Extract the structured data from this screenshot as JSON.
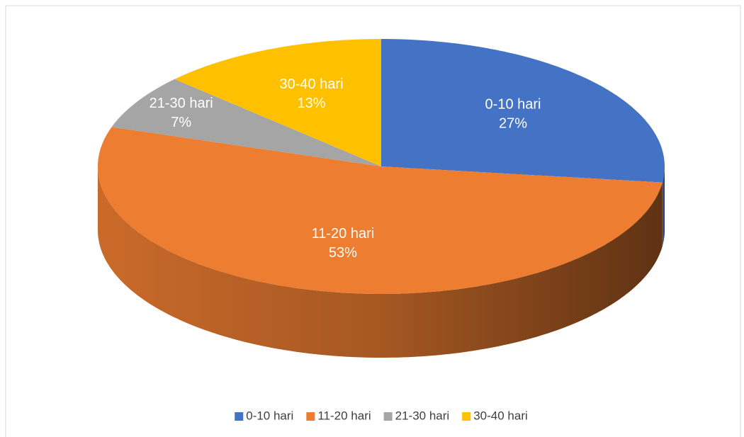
{
  "chart_data": {
    "type": "pie",
    "categories": [
      "0-10 hari",
      "11-20 hari",
      "21-30 hari",
      "30-40 hari"
    ],
    "values": [
      27,
      53,
      7,
      13
    ],
    "value_labels": [
      "27%",
      "53%",
      "7%",
      "13%"
    ],
    "colors": [
      "#4472c4",
      "#ed7d31",
      "#a5a5a5",
      "#ffc000"
    ],
    "legend": "bottom"
  }
}
